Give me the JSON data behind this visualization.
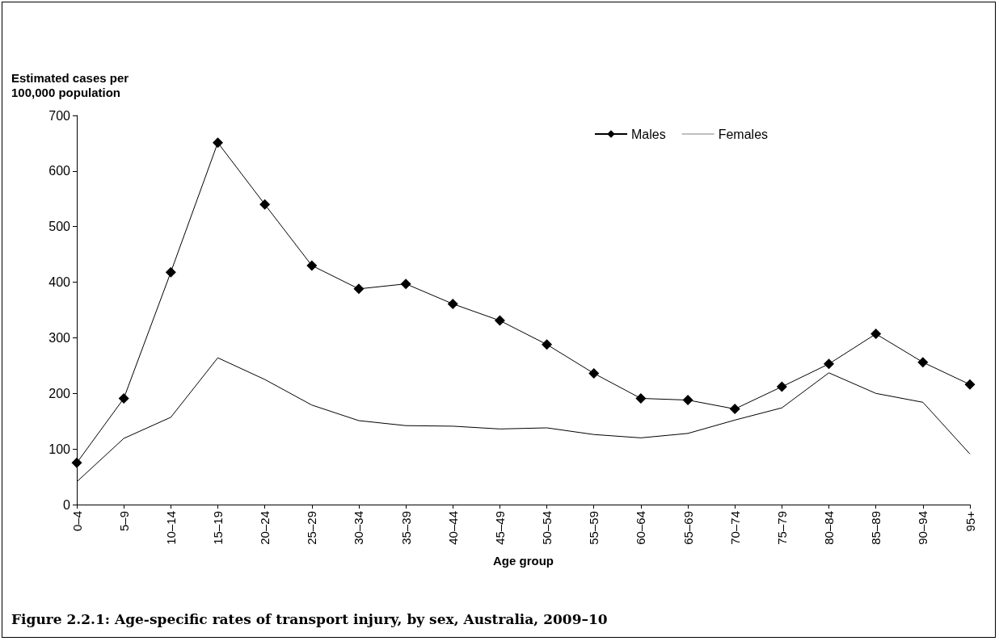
{
  "chart_data": {
    "type": "line",
    "title": "Figure 2.2.1: Age-specific rates of transport injury, by sex, Australia, 2009–10",
    "xlabel": "Age group",
    "ylabel": "Estimated cases per 100,000 population",
    "categories": [
      "0–4",
      "5–9",
      "10–14",
      "15–19",
      "20–24",
      "25–29",
      "30–34",
      "35–39",
      "40–44",
      "45–49",
      "50–54",
      "55–59",
      "60–64",
      "65–69",
      "70–74",
      "75–79",
      "80–84",
      "85–89",
      "90–94",
      "95+"
    ],
    "series": [
      {
        "name": "Males",
        "color": "#000000",
        "marker": "diamond",
        "values": [
          75,
          191,
          418,
          651,
          540,
          430,
          388,
          397,
          361,
          331,
          288,
          236,
          191,
          188,
          172,
          212,
          253,
          307,
          256,
          216
        ]
      },
      {
        "name": "Females",
        "color": "#000000",
        "marker": "none",
        "values": [
          41,
          119,
          157,
          264,
          225,
          179,
          151,
          142,
          141,
          136,
          138,
          126,
          120,
          128,
          152,
          174,
          237,
          200,
          184,
          91
        ]
      }
    ],
    "ylim": [
      0,
      700
    ],
    "yticks": [
      0,
      100,
      200,
      300,
      400,
      500,
      600,
      700
    ],
    "grid": false,
    "legend": "top",
    "line_style": "solid"
  }
}
